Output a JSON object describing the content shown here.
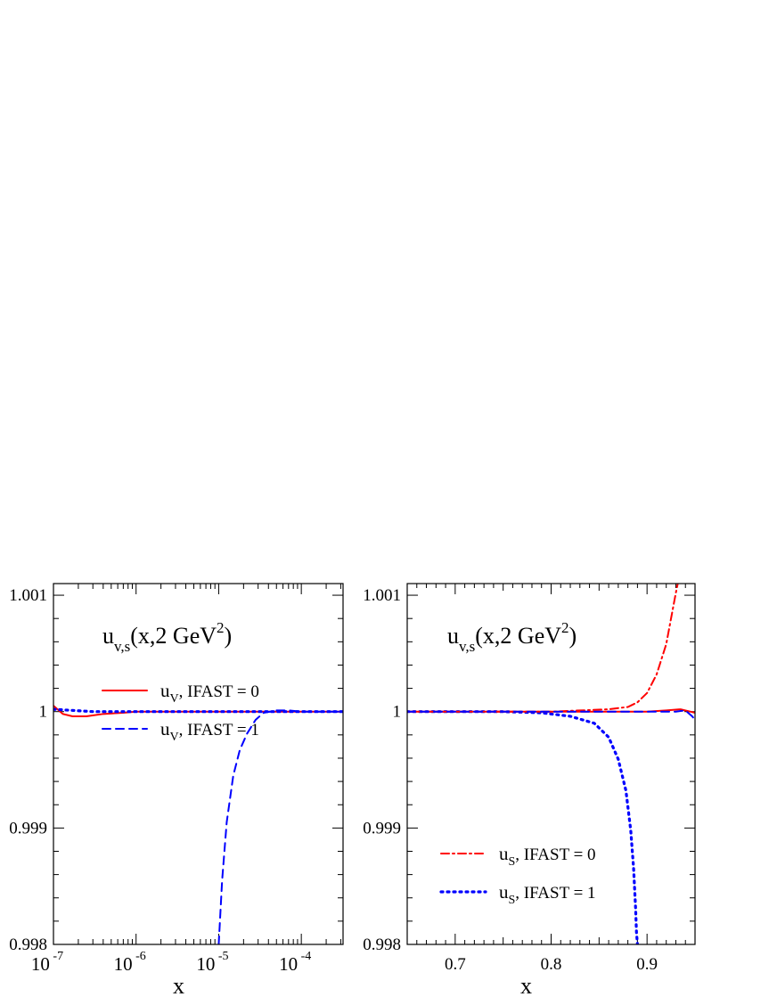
{
  "chart_data": [
    {
      "type": "line",
      "title_main": "u",
      "title_sub": "v,s",
      "title_rest": "(x,2 GeV",
      "title_sup": "2",
      "title_close": ")",
      "xlabel": "x",
      "xscale": "log",
      "xlim": [
        1e-07,
        0.00032
      ],
      "ylim": [
        0.998,
        1.0011
      ],
      "y_ticks": [
        {
          "v": 0.998,
          "label": "0.998"
        },
        {
          "v": 0.999,
          "label": "0.999"
        },
        {
          "v": 1.0,
          "label": "1"
        },
        {
          "v": 1.001,
          "label": "1.001"
        }
      ],
      "x_ticks": [
        {
          "v": 1e-07,
          "base": "10",
          "exp": "-7"
        },
        {
          "v": 1e-06,
          "base": "10",
          "exp": "-6"
        },
        {
          "v": 1e-05,
          "base": "10",
          "exp": "-5"
        },
        {
          "v": 0.0001,
          "base": "10",
          "exp": "-4"
        }
      ],
      "legend_position": "upper-right",
      "series": [
        {
          "legend_main": "u",
          "legend_sub": "V",
          "legend_rest": ", IFAST = 0",
          "color": "#ff0000",
          "dash": "solid",
          "points": [
            [
              1e-07,
              1.00005
            ],
            [
              1.3e-07,
              0.99998
            ],
            [
              1.7e-07,
              0.99996
            ],
            [
              2.5e-07,
              0.99996
            ],
            [
              4e-07,
              0.99998
            ],
            [
              7e-07,
              0.99999
            ],
            [
              1e-06,
              1.0
            ],
            [
              3e-06,
              1.0
            ],
            [
              1e-05,
              1.0
            ],
            [
              3e-05,
              1.0
            ],
            [
              0.0001,
              1.0
            ],
            [
              0.00032,
              1.0
            ]
          ]
        },
        {
          "legend_main": "u",
          "legend_sub": "V",
          "legend_rest": ", IFAST = 1",
          "color": "#0000ff",
          "dash": "dashed",
          "points": [
            [
              1e-05,
              0.998
            ],
            [
              1.1e-05,
              0.99855
            ],
            [
              1.25e-05,
              0.99905
            ],
            [
              1.5e-05,
              0.99945
            ],
            [
              1.8e-05,
              0.99967
            ],
            [
              2.2e-05,
              0.99981
            ],
            [
              2.8e-05,
              0.99993
            ],
            [
              3.5e-05,
              0.99999
            ],
            [
              5e-05,
              1.00001
            ],
            [
              7e-05,
              1.00001
            ],
            [
              0.0001,
              1.0
            ],
            [
              0.00032,
              1.0
            ]
          ]
        },
        {
          "color": "#0000ff",
          "dash": "dotted",
          "points": [
            [
              1e-07,
              1.00002
            ],
            [
              3e-07,
              1.0
            ],
            [
              1e-06,
              1.0
            ],
            [
              1e-05,
              1.0
            ],
            [
              0.0001,
              1.0
            ],
            [
              0.00032,
              1.0
            ]
          ]
        }
      ]
    },
    {
      "type": "line",
      "title_main": "u",
      "title_sub": "v,s",
      "title_rest": "(x,2 GeV",
      "title_sup": "2",
      "title_close": ")",
      "xlabel": "x",
      "xscale": "linear",
      "xlim": [
        0.65,
        0.95
      ],
      "ylim": [
        0.998,
        1.0011
      ],
      "y_ticks": [
        {
          "v": 0.998,
          "label": "0.998"
        },
        {
          "v": 0.999,
          "label": "0.999"
        },
        {
          "v": 1.0,
          "label": "1"
        },
        {
          "v": 1.001,
          "label": "1.001"
        }
      ],
      "x_ticks": [
        {
          "v": 0.7,
          "label": "0.7"
        },
        {
          "v": 0.8,
          "label": "0.8"
        },
        {
          "v": 0.9,
          "label": "0.9"
        }
      ],
      "legend_position": "lower-right",
      "series": [
        {
          "legend_main": "u",
          "legend_sub": "S",
          "legend_rest": ", IFAST = 0",
          "color": "#ff0000",
          "dash": "dashdot",
          "points": [
            [
              0.65,
              1.0
            ],
            [
              0.8,
              1.0
            ],
            [
              0.83,
              1.00001
            ],
            [
              0.86,
              1.00002
            ],
            [
              0.88,
              1.00004
            ],
            [
              0.89,
              1.00008
            ],
            [
              0.9,
              1.00016
            ],
            [
              0.91,
              1.00032
            ],
            [
              0.92,
              1.00058
            ],
            [
              0.925,
              1.0008
            ],
            [
              0.93,
              1.00102
            ],
            [
              0.932,
              1.0011
            ]
          ]
        },
        {
          "legend_main": "u",
          "legend_sub": "S",
          "legend_rest": ", IFAST = 1",
          "color": "#0000ff",
          "dash": "dotted",
          "points": [
            [
              0.65,
              1.0
            ],
            [
              0.75,
              1.0
            ],
            [
              0.79,
              0.99999
            ],
            [
              0.82,
              0.99996
            ],
            [
              0.845,
              0.9999
            ],
            [
              0.86,
              0.99978
            ],
            [
              0.87,
              0.99959
            ],
            [
              0.878,
              0.99932
            ],
            [
              0.883,
              0.99898
            ],
            [
              0.886,
              0.99865
            ],
            [
              0.888,
              0.99832
            ],
            [
              0.889,
              0.9981
            ],
            [
              0.89,
              0.998
            ]
          ]
        },
        {
          "color": "#ff0000",
          "dash": "solid",
          "points": [
            [
              0.65,
              1.0
            ],
            [
              0.9,
              1.0
            ],
            [
              0.92,
              1.00001
            ],
            [
              0.935,
              1.00002
            ],
            [
              0.945,
              1.0
            ],
            [
              0.95,
              0.99999
            ]
          ]
        },
        {
          "color": "#0000ff",
          "dash": "dashed",
          "points": [
            [
              0.65,
              1.0
            ],
            [
              0.93,
              1.0
            ],
            [
              0.94,
              1.00001
            ],
            [
              0.947,
              0.99996
            ],
            [
              0.95,
              0.99993
            ]
          ]
        }
      ]
    }
  ]
}
